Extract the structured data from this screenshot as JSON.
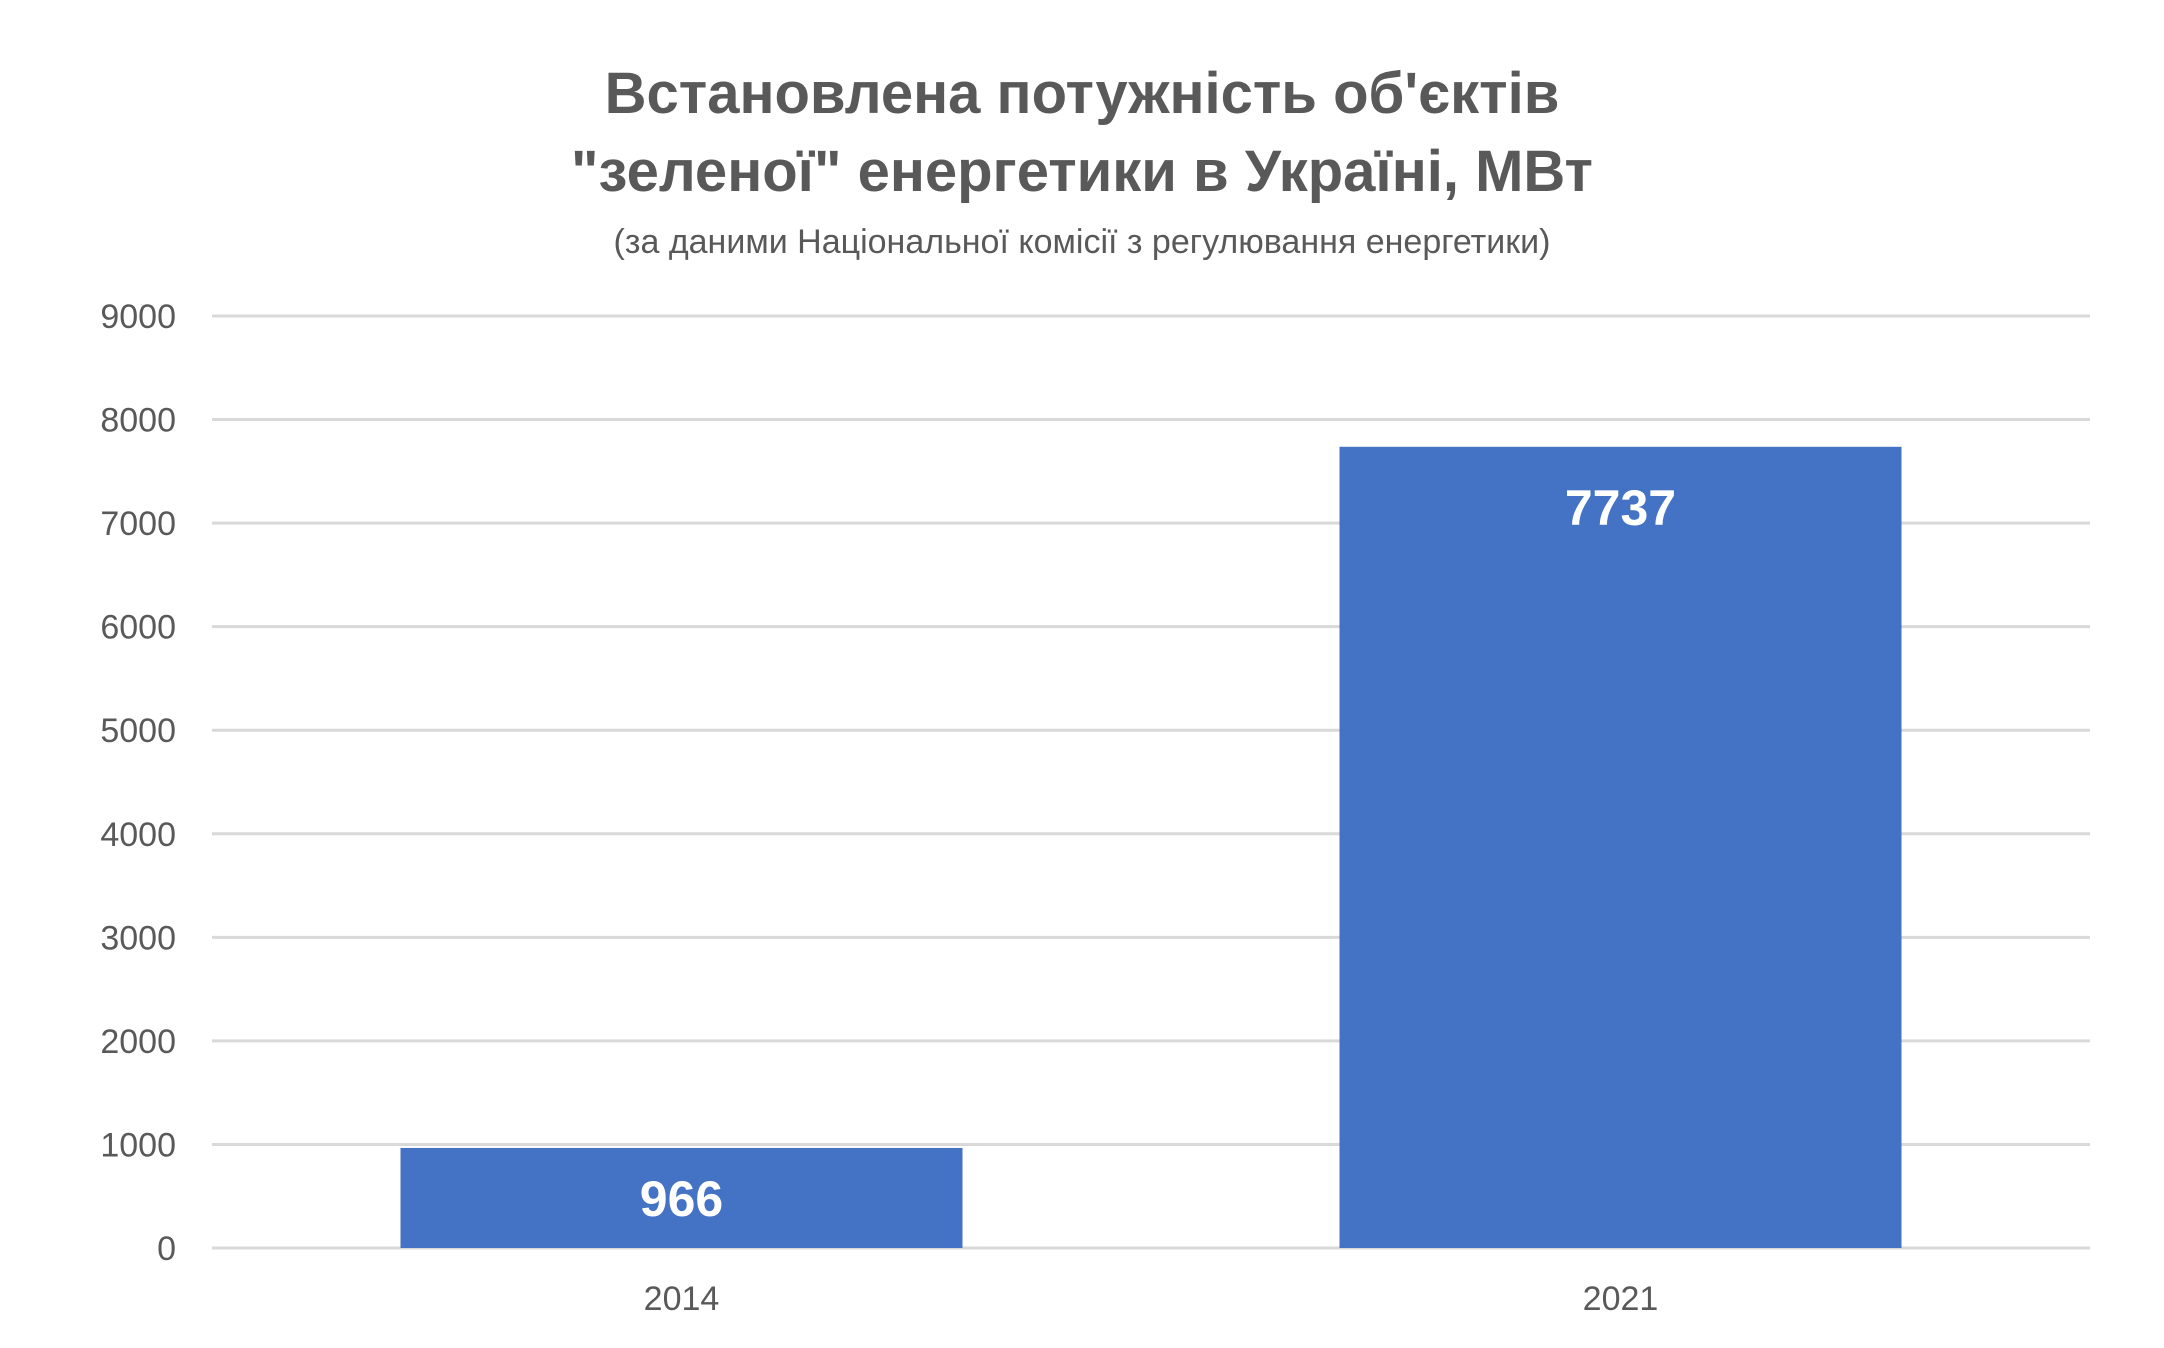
{
  "chart_data": {
    "type": "bar",
    "title_lines": [
      "Встановлена потужність об'єктів",
      "\"зеленої\" енергетики в Україні, МВт"
    ],
    "subtitle": "(за даними Національної комісії з регулювання енергетики)",
    "categories": [
      "2014",
      "2021"
    ],
    "values": [
      966,
      7737
    ],
    "data_labels": [
      "966",
      "7737"
    ],
    "y_ticks": [
      "0",
      "1000",
      "2000",
      "3000",
      "4000",
      "5000",
      "6000",
      "7000",
      "8000",
      "9000"
    ],
    "ylim": [
      0,
      9000
    ],
    "grid": true,
    "legend": "none",
    "colors": {
      "bar": "#4472C4",
      "grid": "#D9D9D9",
      "axis_text": "#595959",
      "title": "#595959",
      "data_label": "#FFFFFF"
    }
  }
}
